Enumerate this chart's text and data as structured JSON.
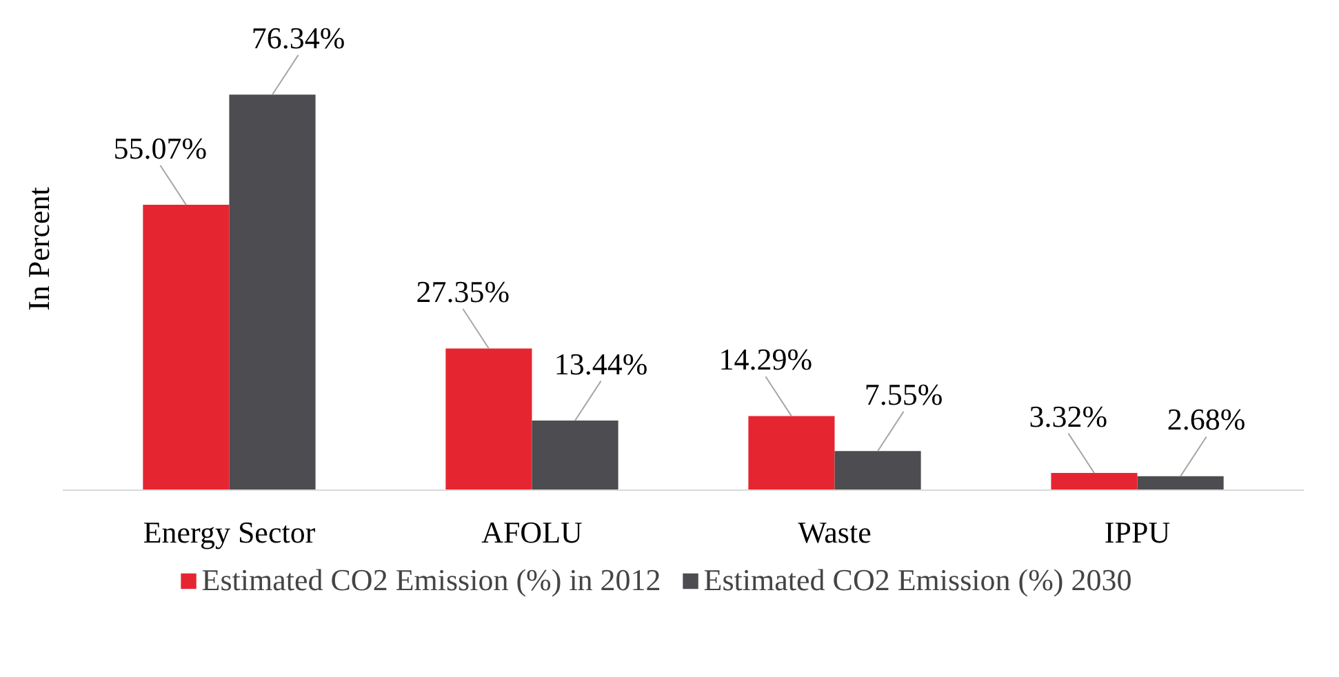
{
  "chart_data": {
    "type": "bar",
    "ylabel": "In Percent",
    "categories": [
      "Energy Sector",
      "AFOLU",
      "Waste",
      "IPPU"
    ],
    "series": [
      {
        "name": "Estimated CO2 Emission (%) in 2012",
        "color": "#e52630",
        "values": [
          55.07,
          27.35,
          14.29,
          3.32
        ],
        "value_labels": [
          "55.07%",
          "27.35%",
          "14.29%",
          "3.32%"
        ]
      },
      {
        "name": "Estimated CO2 Emission (%) 2030",
        "color": "#4c4c51",
        "values": [
          76.34,
          13.44,
          7.55,
          2.68
        ],
        "value_labels": [
          "76.34%",
          "13.44%",
          "7.55%",
          "2.68%"
        ]
      }
    ],
    "legend": "bottom"
  }
}
